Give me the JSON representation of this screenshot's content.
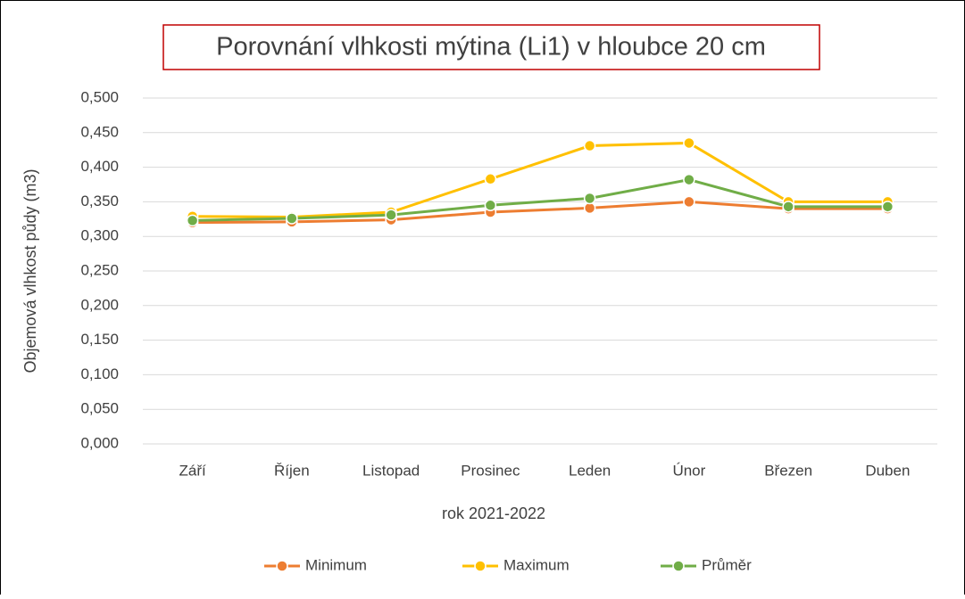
{
  "chart_data": {
    "type": "line",
    "title": "Porovnání vlhkosti mýtina (Li1) v hloubce 20 cm",
    "x_label": "rok 2021-2022",
    "y_label": "Objemová vlhkost půdy (m3)",
    "categories": [
      "Září",
      "Říjen",
      "Listopad",
      "Prosinec",
      "Leden",
      "Únor",
      "Březen",
      "Duben"
    ],
    "series": [
      {
        "name": "Minimum",
        "color": "#ed7d31",
        "values": [
          0.32,
          0.321,
          0.324,
          0.335,
          0.341,
          0.35,
          0.34,
          0.34
        ]
      },
      {
        "name": "Maximum",
        "color": "#ffc000",
        "values": [
          0.329,
          0.328,
          0.335,
          0.383,
          0.431,
          0.435,
          0.35,
          0.35
        ]
      },
      {
        "name": "Průměr",
        "color": "#70ad47",
        "values": [
          0.323,
          0.326,
          0.331,
          0.345,
          0.355,
          0.382,
          0.343,
          0.343
        ]
      }
    ],
    "ylim": [
      0,
      0.5
    ],
    "yticks": [
      {
        "value": 0,
        "label": "0,000"
      },
      {
        "value": 0.05,
        "label": "0,050"
      },
      {
        "value": 0.1,
        "label": "0,100"
      },
      {
        "value": 0.15,
        "label": "0,150"
      },
      {
        "value": 0.2,
        "label": "0,200"
      },
      {
        "value": 0.25,
        "label": "0,250"
      },
      {
        "value": 0.3,
        "label": "0,300"
      },
      {
        "value": 0.35,
        "label": "0,350"
      },
      {
        "value": 0.4,
        "label": "0,400"
      },
      {
        "value": 0.45,
        "label": "0,450"
      },
      {
        "value": 0.5,
        "label": "0,500"
      }
    ],
    "grid": true,
    "legend": "bottom"
  }
}
